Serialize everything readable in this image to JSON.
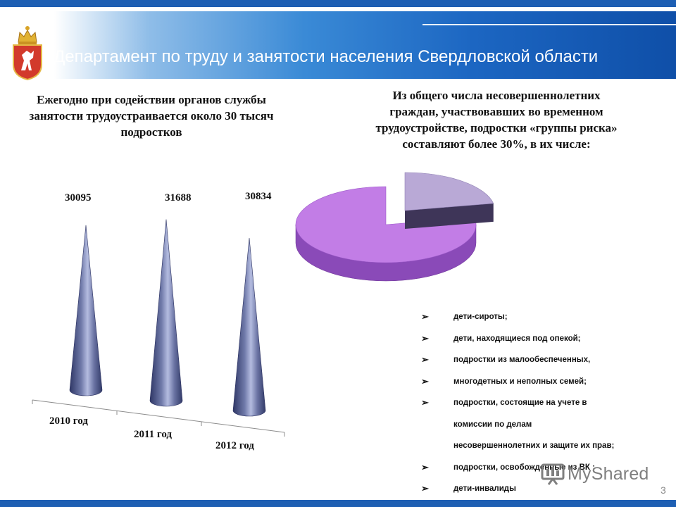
{
  "header": {
    "title": "Департамент по труду и занятости населения Свердловской области",
    "emblem_icon": "coat-of-arms-icon"
  },
  "left_panel": {
    "text": "Ежегодно при содействии органов службы занятости трудоустраивается около 30 тысяч подростков"
  },
  "right_panel": {
    "lines": [
      "Из общего числа несовершеннолетних",
      "граждан, участвовавших во временном",
      "трудоустройстве, подростки «группы риска»",
      "составляют более 30%, в их числе:"
    ]
  },
  "risk_list": {
    "bullet_icon": "checkmark-arrow-icon",
    "items": [
      {
        "text": "дети-сироты;",
        "bullet": true
      },
      {
        "text": "дети, находящиеся под опекой;",
        "bullet": true
      },
      {
        "text": "подростки из малообеспеченных,",
        "bullet": true
      },
      {
        "text": "многодетных и неполных семей;",
        "bullet": true
      },
      {
        "text": "подростки, состоящие на учете в",
        "bullet": true
      },
      {
        "text": "комиссии  по делам",
        "bullet": false
      },
      {
        "text": "несовершеннолетних и защите их прав;",
        "bullet": false
      },
      {
        "text": "подростки, освобожденные из ВК ;",
        "bullet": true
      },
      {
        "text": "дети-инвалиды",
        "bullet": true
      }
    ]
  },
  "chart_data": [
    {
      "type": "bar",
      "shape": "cone",
      "categories": [
        "2010 год",
        "2011 год",
        "2012 год"
      ],
      "values": [
        30095,
        31688,
        30834
      ],
      "data_labels": [
        "30095",
        "31688",
        "30834"
      ],
      "colors": {
        "fill": "#6e78a8",
        "highlight": "#b4bce0",
        "shadow": "#323a68"
      }
    },
    {
      "type": "pie",
      "style": "3d-exploded",
      "values": [
        22,
        78
      ],
      "colors": [
        "#b9a9d6",
        "#c27de6"
      ]
    }
  ],
  "footer": {
    "page_number": "3",
    "watermark": "MyShared"
  }
}
